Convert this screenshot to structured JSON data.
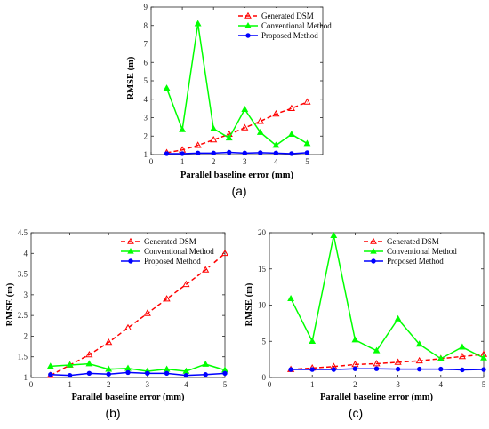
{
  "colors": {
    "generated": "#ff0000",
    "conventional": "#00ff00",
    "proposed": "#0000ff"
  },
  "chart_data": [
    {
      "panel": "(a)",
      "type": "line",
      "xlabel": "Parallel baseline error (mm)",
      "ylabel": "RMSE (m)",
      "xlim": [
        0,
        5.5
      ],
      "ylim": [
        1,
        9
      ],
      "xticks": [
        0,
        1,
        2,
        3,
        4,
        5
      ],
      "yticks": [
        1,
        2,
        3,
        4,
        5,
        6,
        7,
        8,
        9
      ],
      "legend_position": "top-right",
      "grid": false,
      "x": [
        0.5,
        1,
        1.5,
        2,
        2.5,
        3,
        3.5,
        4,
        4.5,
        5
      ],
      "series": [
        {
          "name": "Generated DSM",
          "values": [
            1.1,
            1.25,
            1.5,
            1.8,
            2.1,
            2.45,
            2.8,
            3.2,
            3.5,
            3.85
          ]
        },
        {
          "name": "Conventional Method",
          "values": [
            4.6,
            2.35,
            8.1,
            2.4,
            1.9,
            3.45,
            2.2,
            1.5,
            2.1,
            1.6
          ]
        },
        {
          "name": "Proposed Method",
          "values": [
            1.05,
            1.05,
            1.08,
            1.08,
            1.12,
            1.08,
            1.1,
            1.08,
            1.05,
            1.1
          ]
        }
      ]
    },
    {
      "panel": "(b)",
      "type": "line",
      "xlabel": "Parallel baseline error (mm)",
      "ylabel": "RMSE (m)",
      "xlim": [
        0,
        5
      ],
      "ylim": [
        1,
        4.5
      ],
      "xticks": [
        0,
        1,
        2,
        3,
        4,
        5
      ],
      "yticks": [
        1,
        1.5,
        2,
        2.5,
        3,
        3.5,
        4,
        4.5
      ],
      "legend_position": "top-right",
      "grid": false,
      "x": [
        0.5,
        1,
        1.5,
        2,
        2.5,
        3,
        3.5,
        4,
        4.5,
        5
      ],
      "series": [
        {
          "name": "Generated DSM",
          "values": [
            1.05,
            1.3,
            1.55,
            1.85,
            2.2,
            2.55,
            2.9,
            3.25,
            3.6,
            4.0
          ]
        },
        {
          "name": "Conventional Method",
          "values": [
            1.27,
            1.3,
            1.33,
            1.2,
            1.22,
            1.15,
            1.2,
            1.15,
            1.32,
            1.18
          ]
        },
        {
          "name": "Proposed Method",
          "values": [
            1.07,
            1.05,
            1.1,
            1.08,
            1.12,
            1.1,
            1.1,
            1.05,
            1.07,
            1.1
          ]
        }
      ]
    },
    {
      "panel": "(c)",
      "type": "line",
      "xlabel": "Parallel baseline error (mm)",
      "ylabel": "RMSE (m)",
      "xlim": [
        0,
        5
      ],
      "ylim": [
        0,
        20
      ],
      "xticks": [
        0,
        1,
        2,
        3,
        4,
        5
      ],
      "yticks": [
        0,
        5,
        10,
        15,
        20
      ],
      "legend_position": "top-right",
      "grid": false,
      "x": [
        0.5,
        1,
        1.5,
        2,
        2.5,
        3,
        3.5,
        4,
        4.5,
        5
      ],
      "series": [
        {
          "name": "Generated DSM",
          "values": [
            1.1,
            1.3,
            1.5,
            1.8,
            1.9,
            2.1,
            2.3,
            2.6,
            2.9,
            3.2
          ]
        },
        {
          "name": "Conventional Method",
          "values": [
            10.9,
            5.0,
            19.6,
            5.2,
            3.7,
            8.1,
            4.6,
            2.6,
            4.2,
            2.7
          ]
        },
        {
          "name": "Proposed Method",
          "values": [
            1.1,
            1.1,
            1.1,
            1.2,
            1.2,
            1.15,
            1.15,
            1.15,
            1.05,
            1.1
          ]
        }
      ]
    }
  ]
}
